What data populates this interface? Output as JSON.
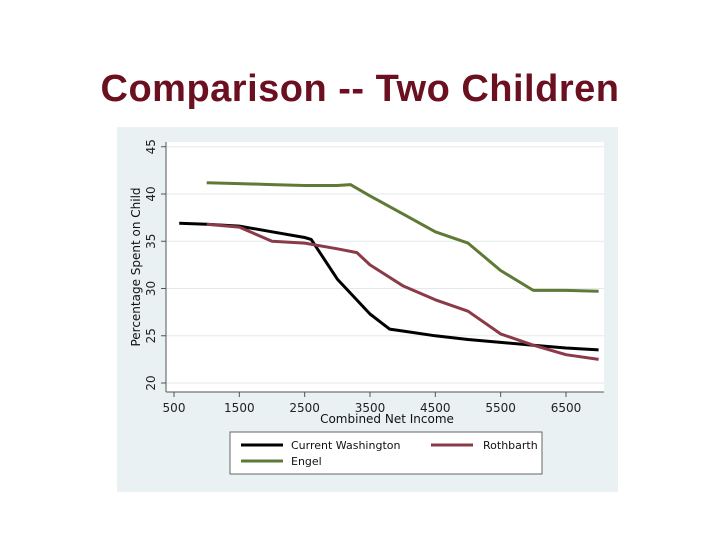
{
  "slide": {
    "title": "Comparison -- Two Children"
  },
  "chart_data": {
    "type": "line",
    "title": "",
    "xlabel": "Combined Net Income",
    "ylabel": "Percentage Spent on Child",
    "xlim": [
      500,
      7000
    ],
    "ylim": [
      20,
      45
    ],
    "x_ticks": [
      500,
      1500,
      2500,
      3500,
      4500,
      5500,
      6500
    ],
    "y_ticks": [
      20,
      25,
      30,
      35,
      40,
      45
    ],
    "grid": "horizontal",
    "legend_position": "bottom",
    "series": [
      {
        "name": "Current Washington",
        "color": "#000000",
        "x": [
          580,
          1000,
          1500,
          2000,
          2500,
          2600,
          3000,
          3500,
          3800,
          4000,
          4500,
          5000,
          5500,
          6000,
          6500,
          7000
        ],
        "values": [
          36.9,
          36.8,
          36.6,
          36.0,
          35.4,
          35.2,
          31.0,
          27.3,
          25.7,
          25.5,
          25.0,
          24.6,
          24.3,
          24.0,
          23.7,
          23.5
        ]
      },
      {
        "name": "Rothbarth",
        "color": "#8b3a48",
        "x": [
          1000,
          1500,
          2000,
          2500,
          3000,
          3300,
          3500,
          4000,
          4500,
          5000,
          5500,
          6000,
          6500,
          7000
        ],
        "values": [
          36.8,
          36.5,
          35.0,
          34.8,
          34.2,
          33.8,
          32.5,
          30.3,
          28.8,
          27.6,
          25.2,
          24.0,
          23.0,
          22.5
        ]
      },
      {
        "name": "Engel",
        "color": "#5e7a35",
        "x": [
          1000,
          1500,
          2000,
          2500,
          3000,
          3200,
          3500,
          4000,
          4500,
          5000,
          5500,
          6000,
          6500,
          7000
        ],
        "values": [
          41.2,
          41.1,
          41.0,
          40.9,
          40.9,
          41.0,
          39.8,
          37.9,
          36.0,
          34.8,
          31.9,
          29.8,
          29.8,
          29.7
        ]
      }
    ]
  },
  "legend": {
    "items": [
      {
        "label": "Current Washington",
        "color": "#000000"
      },
      {
        "label": "Rothbarth",
        "color": "#8b3a48"
      },
      {
        "label": "Engel",
        "color": "#5e7a35"
      }
    ]
  }
}
